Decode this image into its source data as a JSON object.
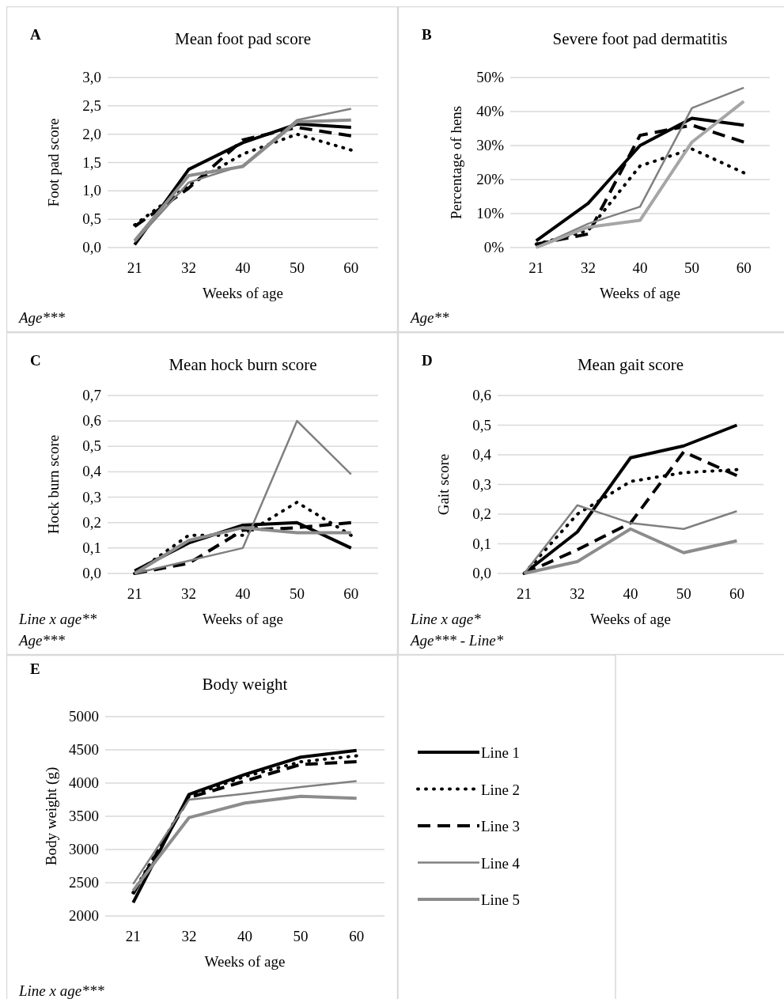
{
  "chart_data": [
    {
      "type": "line",
      "title": "Mean foot pad score",
      "xlabel": "Weeks of age",
      "ylabel": "Foot pad score",
      "annotations": [
        "A",
        "Age***"
      ],
      "categories": [
        "21",
        "32",
        "40",
        "50",
        "60"
      ],
      "ylim": [
        0,
        3
      ],
      "yticks": [
        {
          "value": 0,
          "label": "0,0"
        },
        {
          "value": 0.5,
          "label": "0,5"
        },
        {
          "value": 1,
          "label": "1,0"
        },
        {
          "value": 1.5,
          "label": "1,5"
        },
        {
          "value": 2,
          "label": "2,0"
        },
        {
          "value": 2.5,
          "label": "2,5"
        },
        {
          "value": 3,
          "label": "3,0"
        }
      ],
      "grid": "y",
      "series": [
        {
          "color": "#000000",
          "line_style": "solid",
          "values": [
            0.05,
            1.38,
            1.85,
            2.18,
            2.12
          ]
        },
        {
          "color": "#000000",
          "line_style": "dotted",
          "values": [
            0.4,
            1.1,
            1.65,
            2.0,
            1.72
          ]
        },
        {
          "color": "#000000",
          "line_style": "dashed",
          "values": [
            0.37,
            1.05,
            1.9,
            2.12,
            1.97
          ]
        },
        {
          "color": "#808080",
          "line_style": "solid",
          "values": [
            0.1,
            1.15,
            1.45,
            2.25,
            2.45
          ]
        },
        {
          "color": "#8c8c8c",
          "line_style": "solid",
          "values": [
            0.12,
            1.27,
            1.43,
            2.22,
            2.25
          ]
        }
      ]
    },
    {
      "type": "line",
      "title": "Severe foot pad dermatitis",
      "xlabel": "Weeks of age",
      "ylabel": "Percentage of hens",
      "annotations": [
        "B",
        "Age**"
      ],
      "categories": [
        "21",
        "32",
        "40",
        "50",
        "60"
      ],
      "ylim": [
        0,
        50
      ],
      "yticks": [
        {
          "value": 0,
          "label": "0%"
        },
        {
          "value": 10,
          "label": "10%"
        },
        {
          "value": 20,
          "label": "20%"
        },
        {
          "value": 30,
          "label": "30%"
        },
        {
          "value": 40,
          "label": "40%"
        },
        {
          "value": 50,
          "label": "50%"
        }
      ],
      "grid": "y",
      "series": [
        {
          "color": "#000000",
          "line_style": "solid",
          "values": [
            2,
            13,
            30,
            38,
            36
          ]
        },
        {
          "color": "#000000",
          "line_style": "dotted",
          "values": [
            1,
            5,
            24,
            29,
            22
          ]
        },
        {
          "color": "#000000",
          "line_style": "dashed",
          "values": [
            1,
            4,
            33,
            36,
            31
          ]
        },
        {
          "color": "#808080",
          "line_style": "solid",
          "values": [
            0,
            7,
            12,
            41,
            47
          ]
        },
        {
          "color": "#a6a6a6",
          "line_style": "solid",
          "values": [
            0,
            6,
            8,
            31,
            43
          ]
        }
      ]
    },
    {
      "type": "line",
      "title": "Mean hock burn score",
      "xlabel": "Weeks of age",
      "ylabel": "Hock burn score",
      "annotations": [
        "C",
        "Line x age**",
        "Age***"
      ],
      "categories": [
        "21",
        "32",
        "40",
        "50",
        "60"
      ],
      "ylim": [
        0,
        0.7
      ],
      "yticks": [
        {
          "value": 0,
          "label": "0,0"
        },
        {
          "value": 0.1,
          "label": "0,1"
        },
        {
          "value": 0.2,
          "label": "0,2"
        },
        {
          "value": 0.3,
          "label": "0,3"
        },
        {
          "value": 0.4,
          "label": "0,4"
        },
        {
          "value": 0.5,
          "label": "0,5"
        },
        {
          "value": 0.6,
          "label": "0,6"
        },
        {
          "value": 0.7,
          "label": "0,7"
        }
      ],
      "grid": "y",
      "series": [
        {
          "color": "#000000",
          "line_style": "solid",
          "values": [
            0.01,
            0.12,
            0.19,
            0.2,
            0.1
          ]
        },
        {
          "color": "#000000",
          "line_style": "dotted",
          "values": [
            0,
            0.15,
            0.15,
            0.28,
            0.15
          ]
        },
        {
          "color": "#000000",
          "line_style": "dashed",
          "values": [
            0,
            0.04,
            0.17,
            0.18,
            0.2
          ]
        },
        {
          "color": "#808080",
          "line_style": "solid",
          "values": [
            0,
            0.05,
            0.1,
            0.6,
            0.39
          ]
        },
        {
          "color": "#8c8c8c",
          "line_style": "solid",
          "values": [
            0,
            0.13,
            0.18,
            0.16,
            0.16
          ]
        }
      ]
    },
    {
      "type": "line",
      "title": "Mean gait score",
      "xlabel": "Weeks of age",
      "ylabel": "Gait score",
      "annotations": [
        "D",
        "Line x age*",
        "Age*** - Line*"
      ],
      "categories": [
        "21",
        "32",
        "40",
        "50",
        "60"
      ],
      "ylim": [
        0,
        0.6
      ],
      "yticks": [
        {
          "value": 0,
          "label": "0,0"
        },
        {
          "value": 0.1,
          "label": "0,1"
        },
        {
          "value": 0.2,
          "label": "0,2"
        },
        {
          "value": 0.3,
          "label": "0,3"
        },
        {
          "value": 0.4,
          "label": "0,4"
        },
        {
          "value": 0.5,
          "label": "0,5"
        },
        {
          "value": 0.6,
          "label": "0,6"
        }
      ],
      "grid": "y",
      "series": [
        {
          "color": "#000000",
          "line_style": "solid",
          "values": [
            0,
            0.14,
            0.39,
            0.43,
            0.5
          ]
        },
        {
          "color": "#000000",
          "line_style": "dotted",
          "values": [
            0,
            0.2,
            0.31,
            0.34,
            0.35
          ]
        },
        {
          "color": "#000000",
          "line_style": "dashed",
          "values": [
            0,
            0.08,
            0.17,
            0.41,
            0.33
          ]
        },
        {
          "color": "#808080",
          "line_style": "solid",
          "values": [
            0,
            0.23,
            0.17,
            0.15,
            0.21
          ]
        },
        {
          "color": "#8c8c8c",
          "line_style": "solid",
          "values": [
            0,
            0.04,
            0.15,
            0.07,
            0.11
          ]
        }
      ]
    },
    {
      "type": "line",
      "title": "Body weight",
      "xlabel": "Weeks of age",
      "ylabel": "Body weight (g)",
      "annotations": [
        "E",
        "Line x age***"
      ],
      "categories": [
        "21",
        "32",
        "40",
        "50",
        "60"
      ],
      "ylim": [
        2000,
        5000
      ],
      "yticks": [
        2000,
        2500,
        3000,
        3500,
        4000,
        4500,
        5000
      ],
      "grid": "y",
      "legend": "right",
      "series": [
        {
          "name": "Line 1",
          "color": "#000000",
          "line_style": "solid",
          "values": [
            2200,
            3830,
            4130,
            4390,
            4490
          ]
        },
        {
          "name": "Line 2",
          "color": "#000000",
          "line_style": "dotted",
          "values": [
            2350,
            3800,
            4100,
            4320,
            4410
          ]
        },
        {
          "name": "Line 3",
          "color": "#000000",
          "line_style": "dashed",
          "values": [
            2330,
            3780,
            4030,
            4280,
            4320
          ]
        },
        {
          "name": "Line 4",
          "color": "#808080",
          "line_style": "solid",
          "values": [
            2480,
            3750,
            3840,
            3940,
            4030
          ]
        },
        {
          "name": "Line 5",
          "color": "#8c8c8c",
          "line_style": "solid",
          "values": [
            2380,
            3480,
            3700,
            3800,
            3770
          ]
        }
      ]
    }
  ]
}
